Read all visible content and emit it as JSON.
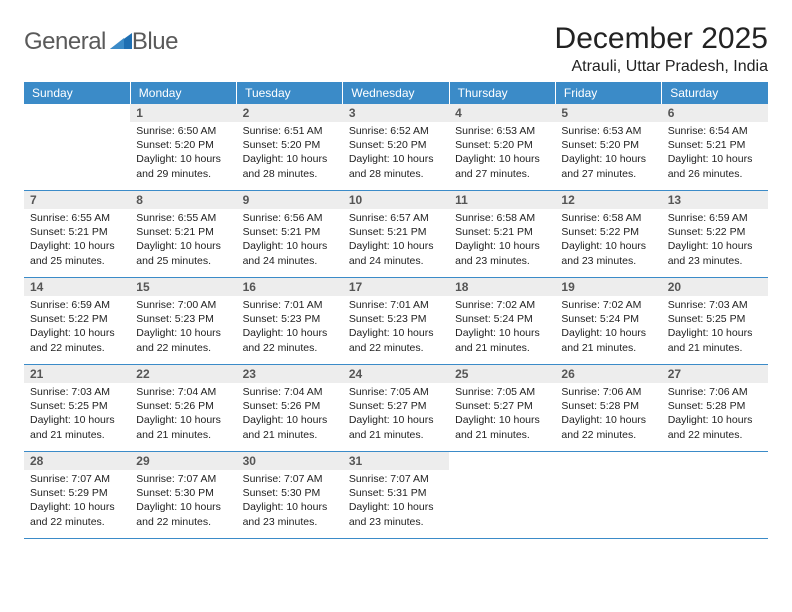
{
  "brand": {
    "name_part1": "General",
    "name_part2": "Blue"
  },
  "title": "December 2025",
  "location": "Atrauli, Uttar Pradesh, India",
  "colors": {
    "header_bg": "#3b8bc8",
    "daynum_bg": "#ededed",
    "row_border": "#3b8bc8",
    "logo_accent": "#1f6fb2"
  },
  "day_headers": [
    "Sunday",
    "Monday",
    "Tuesday",
    "Wednesday",
    "Thursday",
    "Friday",
    "Saturday"
  ],
  "weeks": [
    [
      null,
      {
        "n": "1",
        "sr": "6:50 AM",
        "ss": "5:20 PM",
        "dl": "10 hours and 29 minutes."
      },
      {
        "n": "2",
        "sr": "6:51 AM",
        "ss": "5:20 PM",
        "dl": "10 hours and 28 minutes."
      },
      {
        "n": "3",
        "sr": "6:52 AM",
        "ss": "5:20 PM",
        "dl": "10 hours and 28 minutes."
      },
      {
        "n": "4",
        "sr": "6:53 AM",
        "ss": "5:20 PM",
        "dl": "10 hours and 27 minutes."
      },
      {
        "n": "5",
        "sr": "6:53 AM",
        "ss": "5:20 PM",
        "dl": "10 hours and 27 minutes."
      },
      {
        "n": "6",
        "sr": "6:54 AM",
        "ss": "5:21 PM",
        "dl": "10 hours and 26 minutes."
      }
    ],
    [
      {
        "n": "7",
        "sr": "6:55 AM",
        "ss": "5:21 PM",
        "dl": "10 hours and 25 minutes."
      },
      {
        "n": "8",
        "sr": "6:55 AM",
        "ss": "5:21 PM",
        "dl": "10 hours and 25 minutes."
      },
      {
        "n": "9",
        "sr": "6:56 AM",
        "ss": "5:21 PM",
        "dl": "10 hours and 24 minutes."
      },
      {
        "n": "10",
        "sr": "6:57 AM",
        "ss": "5:21 PM",
        "dl": "10 hours and 24 minutes."
      },
      {
        "n": "11",
        "sr": "6:58 AM",
        "ss": "5:21 PM",
        "dl": "10 hours and 23 minutes."
      },
      {
        "n": "12",
        "sr": "6:58 AM",
        "ss": "5:22 PM",
        "dl": "10 hours and 23 minutes."
      },
      {
        "n": "13",
        "sr": "6:59 AM",
        "ss": "5:22 PM",
        "dl": "10 hours and 23 minutes."
      }
    ],
    [
      {
        "n": "14",
        "sr": "6:59 AM",
        "ss": "5:22 PM",
        "dl": "10 hours and 22 minutes."
      },
      {
        "n": "15",
        "sr": "7:00 AM",
        "ss": "5:23 PM",
        "dl": "10 hours and 22 minutes."
      },
      {
        "n": "16",
        "sr": "7:01 AM",
        "ss": "5:23 PM",
        "dl": "10 hours and 22 minutes."
      },
      {
        "n": "17",
        "sr": "7:01 AM",
        "ss": "5:23 PM",
        "dl": "10 hours and 22 minutes."
      },
      {
        "n": "18",
        "sr": "7:02 AM",
        "ss": "5:24 PM",
        "dl": "10 hours and 21 minutes."
      },
      {
        "n": "19",
        "sr": "7:02 AM",
        "ss": "5:24 PM",
        "dl": "10 hours and 21 minutes."
      },
      {
        "n": "20",
        "sr": "7:03 AM",
        "ss": "5:25 PM",
        "dl": "10 hours and 21 minutes."
      }
    ],
    [
      {
        "n": "21",
        "sr": "7:03 AM",
        "ss": "5:25 PM",
        "dl": "10 hours and 21 minutes."
      },
      {
        "n": "22",
        "sr": "7:04 AM",
        "ss": "5:26 PM",
        "dl": "10 hours and 21 minutes."
      },
      {
        "n": "23",
        "sr": "7:04 AM",
        "ss": "5:26 PM",
        "dl": "10 hours and 21 minutes."
      },
      {
        "n": "24",
        "sr": "7:05 AM",
        "ss": "5:27 PM",
        "dl": "10 hours and 21 minutes."
      },
      {
        "n": "25",
        "sr": "7:05 AM",
        "ss": "5:27 PM",
        "dl": "10 hours and 21 minutes."
      },
      {
        "n": "26",
        "sr": "7:06 AM",
        "ss": "5:28 PM",
        "dl": "10 hours and 22 minutes."
      },
      {
        "n": "27",
        "sr": "7:06 AM",
        "ss": "5:28 PM",
        "dl": "10 hours and 22 minutes."
      }
    ],
    [
      {
        "n": "28",
        "sr": "7:07 AM",
        "ss": "5:29 PM",
        "dl": "10 hours and 22 minutes."
      },
      {
        "n": "29",
        "sr": "7:07 AM",
        "ss": "5:30 PM",
        "dl": "10 hours and 22 minutes."
      },
      {
        "n": "30",
        "sr": "7:07 AM",
        "ss": "5:30 PM",
        "dl": "10 hours and 23 minutes."
      },
      {
        "n": "31",
        "sr": "7:07 AM",
        "ss": "5:31 PM",
        "dl": "10 hours and 23 minutes."
      },
      null,
      null,
      null
    ]
  ],
  "labels": {
    "sunrise": "Sunrise: ",
    "sunset": "Sunset: ",
    "daylight": "Daylight: "
  }
}
